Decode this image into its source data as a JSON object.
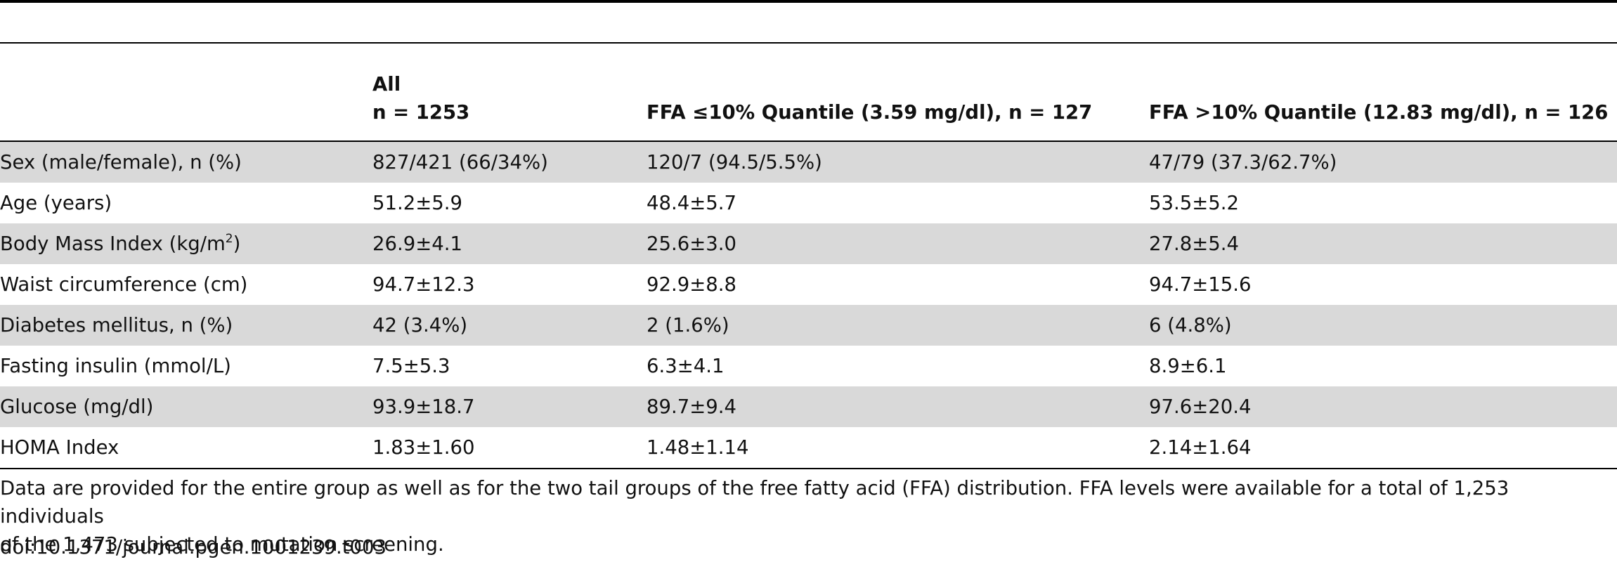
{
  "table": {
    "headers": [
      {
        "line1": "",
        "line2": ""
      },
      {
        "line1": "All",
        "line2": "n = 1253"
      },
      {
        "line1": "",
        "line2": "FFA ≤10% Quantile (3.59 mg/dl), n = 127"
      },
      {
        "line1": "",
        "line2": "FFA >10% Quantile (12.83 mg/dl), n = 126"
      }
    ],
    "rows": [
      {
        "label": "Sex (male/female), n (%)",
        "label_sup": "",
        "label_after": "",
        "all": "827/421 (66/34%)",
        "low": "120/7 (94.5/5.5%)",
        "high": "47/79 (37.3/62.7%)"
      },
      {
        "label": "Age (years)",
        "label_sup": "",
        "label_after": "",
        "all": "51.2±5.9",
        "low": "48.4±5.7",
        "high": "53.5±5.2"
      },
      {
        "label": "Body Mass Index (kg/m",
        "label_sup": "2",
        "label_after": ")",
        "all": "26.9±4.1",
        "low": "25.6±3.0",
        "high": "27.8±5.4"
      },
      {
        "label": "Waist circumference (cm)",
        "label_sup": "",
        "label_after": "",
        "all": "94.7±12.3",
        "low": "92.9±8.8",
        "high": "94.7±15.6"
      },
      {
        "label": "Diabetes mellitus, n (%)",
        "label_sup": "",
        "label_after": "",
        "all": "42 (3.4%)",
        "low": "2 (1.6%)",
        "high": "6 (4.8%)"
      },
      {
        "label": "Fasting insulin (mmol/L)",
        "label_sup": "",
        "label_after": "",
        "all": "7.5±5.3",
        "low": "6.3±4.1",
        "high": "8.9±6.1"
      },
      {
        "label": "Glucose (mg/dl)",
        "label_sup": "",
        "label_after": "",
        "all": "93.9±18.7",
        "low": "89.7±9.4",
        "high": "97.6±20.4"
      },
      {
        "label": "HOMA Index",
        "label_sup": "",
        "label_after": "",
        "all": "1.83±1.60",
        "low": "1.48±1.14",
        "high": "2.14±1.64"
      }
    ]
  },
  "footnote": {
    "line1": "Data are provided for the entire group as well as for the two tail groups of the free fatty acid (FFA) distribution. FFA levels were available for a total of 1,253 individuals",
    "line2": "of the 1,473 subjected to mutation screening."
  },
  "doi": "doi:10.1371/journal.pgen.1001239.t003"
}
